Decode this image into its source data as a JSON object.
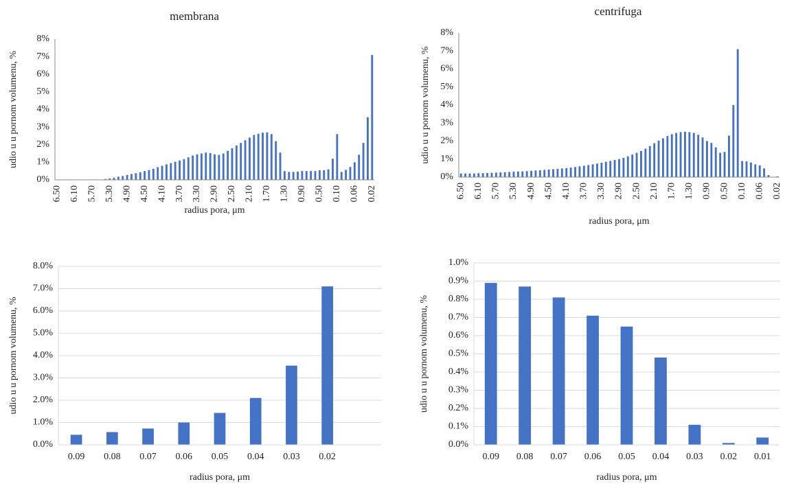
{
  "chart_data": [
    {
      "type": "bar",
      "title": "membrana",
      "xlabel": "radius pora, μm",
      "ylabel": "udio u u pornom volumenu, %",
      "color": "#4472c4",
      "grid": false,
      "x_tick_rotation": -90,
      "categories": [
        "6.50",
        null,
        null,
        null,
        "6.10",
        null,
        null,
        null,
        "5.70",
        null,
        null,
        null,
        "5.30",
        null,
        null,
        null,
        "4.90",
        null,
        null,
        null,
        "4.50",
        null,
        null,
        null,
        "4.10",
        null,
        null,
        null,
        "3.70",
        null,
        null,
        null,
        "3.30",
        null,
        null,
        null,
        "2.90",
        null,
        null,
        null,
        "2.50",
        null,
        null,
        null,
        "2.10",
        null,
        null,
        null,
        "1.70",
        null,
        null,
        null,
        "1.30",
        null,
        null,
        null,
        "0.90",
        null,
        null,
        null,
        "0.50",
        null,
        null,
        null,
        "0.10",
        null,
        null,
        null,
        "0.06",
        null,
        null,
        null,
        "0.02"
      ],
      "values": [
        0,
        0,
        0,
        0,
        0,
        0,
        0,
        0,
        0,
        0,
        0,
        0.05,
        0.08,
        0.12,
        0.18,
        0.22,
        0.28,
        0.33,
        0.38,
        0.43,
        0.5,
        0.56,
        0.63,
        0.72,
        0.8,
        0.88,
        0.95,
        1.03,
        1.1,
        1.18,
        1.28,
        1.38,
        1.45,
        1.5,
        1.55,
        1.52,
        1.45,
        1.42,
        1.5,
        1.65,
        1.8,
        1.95,
        2.1,
        2.25,
        2.4,
        2.55,
        2.62,
        2.68,
        2.7,
        2.6,
        2.2,
        1.55,
        0.5,
        0.45,
        0.45,
        0.47,
        0.5,
        0.5,
        0.5,
        0.5,
        0.55,
        0.55,
        0.6,
        1.2,
        2.6,
        0.45,
        0.57,
        0.73,
        1.0,
        1.43,
        2.1,
        3.55,
        7.1
      ],
      "ylim": [
        0,
        8
      ],
      "yticks": [
        {
          "value": 0,
          "label": "0%"
        },
        {
          "value": 1,
          "label": "1%"
        },
        {
          "value": 2,
          "label": "2%"
        },
        {
          "value": 3,
          "label": "3%"
        },
        {
          "value": 4,
          "label": "4%"
        },
        {
          "value": 5,
          "label": "5%"
        },
        {
          "value": 6,
          "label": "6%"
        },
        {
          "value": 7,
          "label": "7%"
        },
        {
          "value": 8,
          "label": "8%"
        }
      ]
    },
    {
      "type": "bar",
      "title": "centrifuga",
      "xlabel": "radius pora, μm",
      "ylabel": "udio u u pornom volumenu, %",
      "color": "#4472c4",
      "grid": false,
      "x_tick_rotation": -90,
      "categories": [
        "6.50",
        null,
        null,
        null,
        "6.10",
        null,
        null,
        null,
        "5.70",
        null,
        null,
        null,
        "5.30",
        null,
        null,
        null,
        "4.90",
        null,
        null,
        null,
        "4.50",
        null,
        null,
        null,
        "4.10",
        null,
        null,
        null,
        "3.70",
        null,
        null,
        null,
        "3.30",
        null,
        null,
        null,
        "2.90",
        null,
        null,
        null,
        "2.50",
        null,
        null,
        null,
        "2.10",
        null,
        null,
        null,
        "1.70",
        null,
        null,
        null,
        "1.30",
        null,
        null,
        null,
        "0.90",
        null,
        null,
        null,
        "0.50",
        null,
        null,
        null,
        "0.10",
        null,
        null,
        null,
        "0.06",
        null,
        null,
        null,
        "0.02"
      ],
      "values": [
        0.2,
        0.2,
        0.2,
        0.2,
        0.22,
        0.22,
        0.23,
        0.24,
        0.25,
        0.26,
        0.27,
        0.28,
        0.3,
        0.31,
        0.32,
        0.33,
        0.35,
        0.37,
        0.38,
        0.4,
        0.42,
        0.44,
        0.46,
        0.48,
        0.5,
        0.53,
        0.56,
        0.6,
        0.63,
        0.67,
        0.71,
        0.75,
        0.8,
        0.85,
        0.9,
        0.95,
        1.0,
        1.07,
        1.15,
        1.25,
        1.35,
        1.45,
        1.58,
        1.72,
        1.88,
        2.02,
        2.15,
        2.28,
        2.38,
        2.45,
        2.5,
        2.52,
        2.5,
        2.45,
        2.35,
        2.2,
        2.0,
        1.9,
        1.65,
        1.35,
        1.4,
        2.3,
        4.0,
        7.1,
        0.89,
        0.87,
        0.81,
        0.71,
        0.65,
        0.48,
        0.11,
        0.01,
        0.04
      ],
      "ylim": [
        0,
        8
      ],
      "yticks": [
        {
          "value": 0,
          "label": "0%"
        },
        {
          "value": 1,
          "label": "1%"
        },
        {
          "value": 2,
          "label": "2%"
        },
        {
          "value": 3,
          "label": "3%"
        },
        {
          "value": 4,
          "label": "4%"
        },
        {
          "value": 5,
          "label": "5%"
        },
        {
          "value": 6,
          "label": "6%"
        },
        {
          "value": 7,
          "label": "7%"
        },
        {
          "value": 8,
          "label": "8%"
        }
      ]
    },
    {
      "type": "bar",
      "xlabel": "radius pora, μm",
      "ylabel": "udio u u pornom volumenu, %",
      "color": "#4472c4",
      "grid": true,
      "x_tick_rotation": 0,
      "categories": [
        "0.09",
        "0.08",
        "0.07",
        "0.06",
        "0.05",
        "0.04",
        "0.03",
        "0.02",
        null
      ],
      "values": [
        0.45,
        0.57,
        0.73,
        1.0,
        1.43,
        2.1,
        3.55,
        7.1,
        null
      ],
      "ylim": [
        0,
        8
      ],
      "yticks": [
        {
          "value": 0,
          "label": "0.0%"
        },
        {
          "value": 1,
          "label": "1.0%"
        },
        {
          "value": 2,
          "label": "2.0%"
        },
        {
          "value": 3,
          "label": "3.0%"
        },
        {
          "value": 4,
          "label": "4.0%"
        },
        {
          "value": 5,
          "label": "5.0%"
        },
        {
          "value": 6,
          "label": "6.0%"
        },
        {
          "value": 7,
          "label": "7.0%"
        },
        {
          "value": 8,
          "label": "8.0%"
        }
      ]
    },
    {
      "type": "bar",
      "xlabel": "radius pora, μm",
      "ylabel": "udio u u pornom volumenu, %",
      "color": "#4472c4",
      "grid": true,
      "x_tick_rotation": 0,
      "categories": [
        "0.09",
        "0.08",
        "0.07",
        "0.06",
        "0.05",
        "0.04",
        "0.03",
        "0.02",
        "0.01"
      ],
      "values": [
        0.89,
        0.87,
        0.81,
        0.71,
        0.65,
        0.48,
        0.11,
        0.01,
        0.04
      ],
      "ylim": [
        0,
        1
      ],
      "yticks": [
        {
          "value": 0,
          "label": "0.0%"
        },
        {
          "value": 0.1,
          "label": "0.1%"
        },
        {
          "value": 0.2,
          "label": "0.2%"
        },
        {
          "value": 0.3,
          "label": "0.3%"
        },
        {
          "value": 0.4,
          "label": "0.4%"
        },
        {
          "value": 0.5,
          "label": "0.5%"
        },
        {
          "value": 0.6,
          "label": "0.6%"
        },
        {
          "value": 0.7,
          "label": "0.7%"
        },
        {
          "value": 0.8,
          "label": "0.8%"
        },
        {
          "value": 0.9,
          "label": "0.9%"
        },
        {
          "value": 1,
          "label": "1.0%"
        }
      ]
    }
  ]
}
